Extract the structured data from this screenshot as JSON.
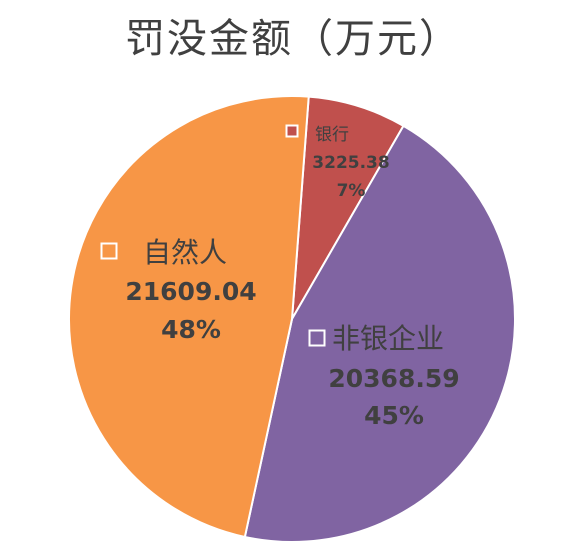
{
  "chart_data": {
    "type": "pie",
    "title": "罚没金额（万元）",
    "slices": [
      {
        "label": "银行",
        "value": 3225.38,
        "value_text": "3225.38",
        "percent_text": "7%",
        "color": "#c0504d"
      },
      {
        "label": "非银企业",
        "value": 20368.59,
        "value_text": "20368.59",
        "percent_text": "45%",
        "color": "#8064a2"
      },
      {
        "label": "自然人",
        "value": 21609.04,
        "value_text": "21609.04",
        "percent_text": "48%",
        "color": "#f79646"
      }
    ],
    "legend": "inline-with-labels"
  }
}
